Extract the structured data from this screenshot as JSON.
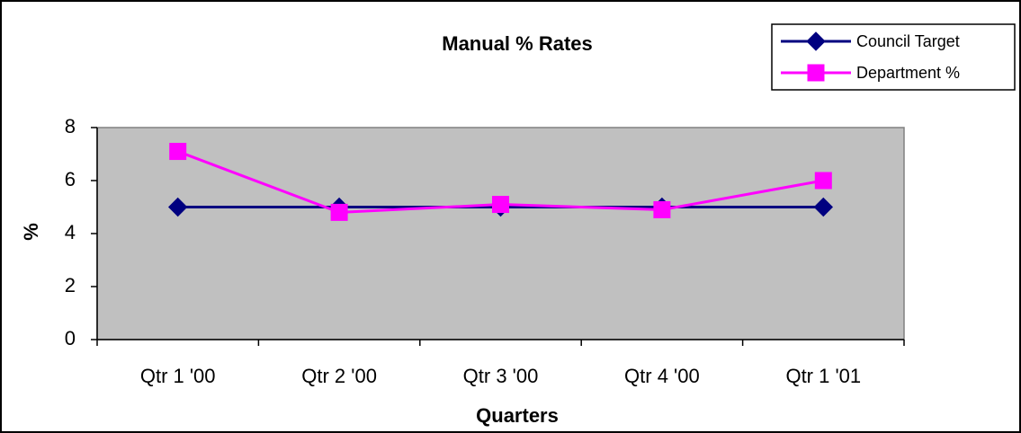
{
  "chart_data": {
    "type": "line",
    "title": "Manual % Rates",
    "x_label": "Quarters",
    "y_label": "%",
    "categories": [
      "Qtr 1 '00",
      "Qtr 2 '00",
      "Qtr 3 '00",
      "Qtr 4 '00",
      "Qtr 1 '01"
    ],
    "series": [
      {
        "name": "Council Target",
        "color": "#000080",
        "marker": "diamond",
        "values": [
          5,
          5,
          5,
          5,
          5
        ]
      },
      {
        "name": "Department %",
        "color": "#ff00ff",
        "marker": "square",
        "values": [
          7.1,
          4.8,
          5.1,
          4.9,
          6.0
        ]
      }
    ],
    "ylim": [
      0,
      8
    ],
    "yticks": [
      0,
      2,
      4,
      6,
      8
    ],
    "grid": false,
    "legend": "top-right"
  }
}
